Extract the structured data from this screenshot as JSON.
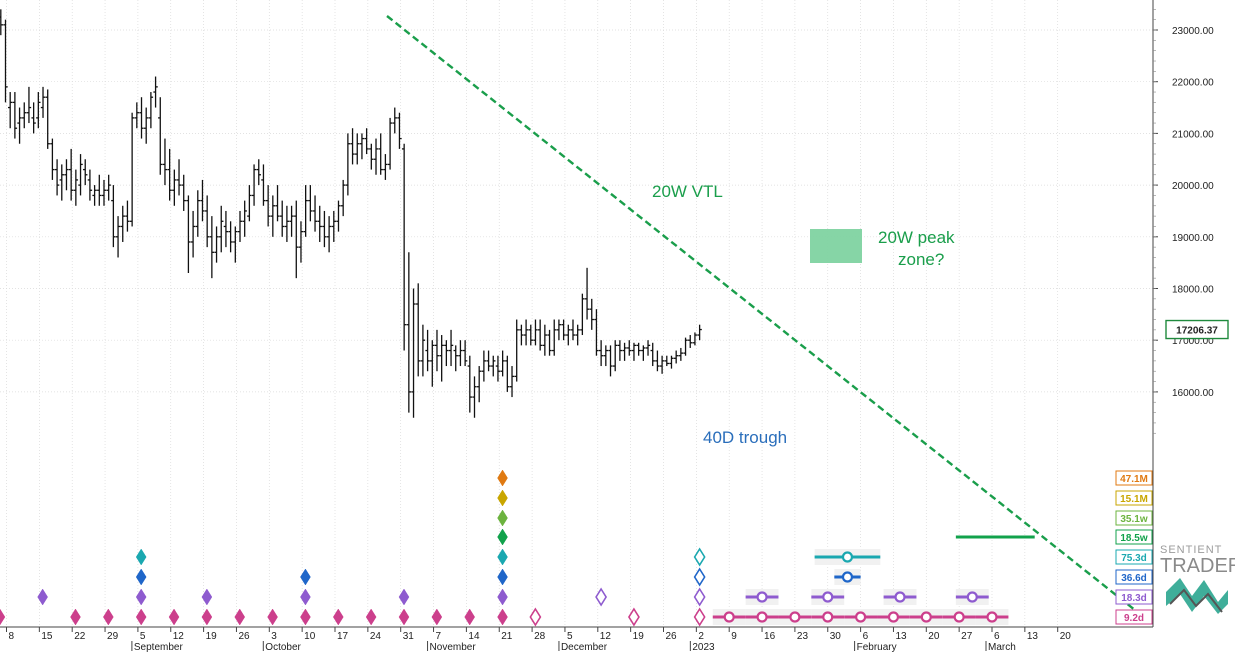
{
  "chart_data": {
    "type": "ohlc-bar",
    "price_axis": {
      "range": [
        15200,
        23400
      ],
      "ticks": [
        "23000.00",
        "22000.00",
        "21000.00",
        "20000.00",
        "19000.00",
        "18000.00",
        "17000.00",
        "16000.00"
      ],
      "tick_values": [
        23000,
        22000,
        21000,
        20000,
        19000,
        18000,
        17000,
        16000
      ],
      "last_price_label": "17206.37",
      "last_price": 17206.37
    },
    "time_axis": {
      "day_labels": [
        "8",
        "15",
        "22",
        "29",
        "5",
        "12",
        "19",
        "26",
        "3",
        "10",
        "17",
        "24",
        "31",
        "7",
        "14",
        "21",
        "28",
        "5",
        "12",
        "19",
        "26",
        "2",
        "9",
        "16",
        "23",
        "30",
        "6",
        "13",
        "20",
        "27",
        "6",
        "13",
        "20"
      ],
      "month_labels": [
        {
          "label": "September",
          "tick": 4
        },
        {
          "label": "October",
          "tick": 8
        },
        {
          "label": "November",
          "tick": 13
        },
        {
          "label": "December",
          "tick": 17
        },
        {
          "label": "2023",
          "tick": 21
        },
        {
          "label": "February",
          "tick": 26
        },
        {
          "label": "March",
          "tick": 30
        }
      ]
    },
    "price_bars": [
      [
        -7,
        23200,
        23400,
        22800,
        23100
      ],
      [
        -6,
        23100,
        23300,
        22900,
        23000
      ],
      [
        -5,
        22950,
        23150,
        22700,
        22800
      ],
      [
        -2,
        23300,
        23400,
        23150,
        23250
      ],
      [
        -1,
        23250,
        23400,
        22900,
        23100
      ],
      [
        0,
        23100,
        23200,
        21600,
        21900
      ],
      [
        1,
        21500,
        21800,
        21100,
        21600
      ],
      [
        2,
        21600,
        21800,
        20900,
        21100
      ],
      [
        3,
        21200,
        21500,
        20800,
        21300
      ],
      [
        4,
        21300,
        21600,
        21100,
        21400
      ],
      [
        5,
        21400,
        21900,
        21200,
        21500
      ],
      [
        6,
        21300,
        21600,
        21000,
        21200
      ],
      [
        7,
        21300,
        21800,
        21100,
        21600
      ],
      [
        8,
        21500,
        21900,
        21300,
        21700
      ],
      [
        9,
        21700,
        21850,
        20700,
        20800
      ],
      [
        10,
        20800,
        20900,
        20100,
        20300
      ],
      [
        11,
        20300,
        20500,
        19800,
        20000
      ],
      [
        12,
        20100,
        20400,
        19700,
        20200
      ],
      [
        13,
        20200,
        20500,
        19900,
        20300
      ],
      [
        14,
        20300,
        20700,
        19700,
        19900
      ],
      [
        15,
        19900,
        20300,
        19600,
        20100
      ],
      [
        16,
        20000,
        20600,
        19800,
        20400
      ],
      [
        17,
        20300,
        20500,
        20000,
        20200
      ],
      [
        18,
        20100,
        20300,
        19700,
        19900
      ],
      [
        19,
        19800,
        20000,
        19600,
        19900
      ],
      [
        20,
        19900,
        20200,
        19600,
        19800
      ],
      [
        21,
        19800,
        20100,
        19600,
        19900
      ],
      [
        22,
        19900,
        20200,
        19700,
        20000
      ],
      [
        23,
        19700,
        20000,
        18800,
        19000
      ],
      [
        24,
        19000,
        19400,
        18600,
        19200
      ],
      [
        25,
        19200,
        19600,
        18900,
        19400
      ],
      [
        26,
        19400,
        19700,
        19100,
        19300
      ],
      [
        27,
        19300,
        21400,
        19200,
        21300
      ],
      [
        28,
        21300,
        21600,
        21100,
        21400
      ],
      [
        29,
        21400,
        21700,
        20900,
        21100
      ],
      [
        30,
        21100,
        21500,
        20800,
        21300
      ],
      [
        31,
        21300,
        21800,
        21100,
        21700
      ],
      [
        32,
        21800,
        22100,
        21500,
        21900
      ],
      [
        33,
        21300,
        21700,
        20200,
        20400
      ],
      [
        34,
        20400,
        20900,
        20000,
        20300
      ],
      [
        35,
        20300,
        20700,
        19700,
        19900
      ],
      [
        36,
        19900,
        20300,
        19600,
        20100
      ],
      [
        37,
        20100,
        20500,
        19800,
        20000
      ],
      [
        38,
        20000,
        20200,
        19500,
        19700
      ],
      [
        39,
        19700,
        19800,
        18300,
        18900
      ],
      [
        40,
        18900,
        19500,
        18600,
        19200
      ],
      [
        41,
        19200,
        19900,
        19000,
        19700
      ],
      [
        42,
        19700,
        20100,
        19300,
        19500
      ],
      [
        43,
        19500,
        19800,
        18800,
        19000
      ],
      [
        44,
        19000,
        19400,
        18200,
        18700
      ],
      [
        45,
        18700,
        19200,
        18500,
        19000
      ],
      [
        46,
        19000,
        19600,
        18700,
        19300
      ],
      [
        47,
        19200,
        19500,
        18800,
        19100
      ],
      [
        48,
        19100,
        19300,
        18700,
        18900
      ],
      [
        49,
        18900,
        19200,
        18500,
        19100
      ],
      [
        50,
        19100,
        19500,
        18900,
        19300
      ],
      [
        51,
        19300,
        19700,
        19000,
        19500
      ],
      [
        52,
        19400,
        20000,
        19300,
        19800
      ],
      [
        53,
        19800,
        20400,
        19600,
        20300
      ],
      [
        54,
        20300,
        20500,
        20000,
        20200
      ],
      [
        55,
        20100,
        20400,
        19600,
        19700
      ],
      [
        56,
        19700,
        20000,
        19200,
        19400
      ],
      [
        57,
        19400,
        19800,
        19000,
        19600
      ],
      [
        58,
        19600,
        20000,
        19300,
        19400
      ],
      [
        59,
        19400,
        19700,
        19000,
        19200
      ],
      [
        60,
        19200,
        19600,
        18900,
        19300
      ],
      [
        61,
        19300,
        19600,
        19000,
        19400
      ],
      [
        62,
        19400,
        19700,
        18200,
        18800
      ],
      [
        63,
        18800,
        19300,
        18500,
        19100
      ],
      [
        64,
        19100,
        20000,
        19000,
        19700
      ],
      [
        65,
        19700,
        20000,
        19300,
        19500
      ],
      [
        66,
        19500,
        19800,
        19100,
        19300
      ],
      [
        67,
        19300,
        19600,
        18900,
        19200
      ],
      [
        68,
        19200,
        19500,
        18800,
        19000
      ],
      [
        69,
        19000,
        19400,
        18700,
        19200
      ],
      [
        70,
        19200,
        19500,
        18900,
        19300
      ],
      [
        71,
        19300,
        19700,
        19100,
        19600
      ],
      [
        72,
        19600,
        20100,
        19400,
        20000
      ],
      [
        73,
        20000,
        21000,
        19800,
        20800
      ],
      [
        74,
        20800,
        21100,
        20400,
        20600
      ],
      [
        75,
        20600,
        21000,
        20400,
        20800
      ],
      [
        76,
        20800,
        21000,
        20500,
        20900
      ],
      [
        77,
        20900,
        21100,
        20600,
        20700
      ],
      [
        78,
        20700,
        20800,
        20300,
        20500
      ],
      [
        79,
        20500,
        20900,
        20200,
        20700
      ],
      [
        80,
        20700,
        21000,
        20200,
        20300
      ],
      [
        81,
        20300,
        20600,
        20100,
        20400
      ],
      [
        82,
        20400,
        21300,
        20300,
        21200
      ],
      [
        83,
        21200,
        21500,
        21000,
        21300
      ],
      [
        84,
        21300,
        21400,
        20700,
        20900
      ],
      [
        85,
        20700,
        20800,
        16800,
        17300
      ],
      [
        86,
        17300,
        18700,
        15600,
        16000
      ],
      [
        87,
        16000,
        18000,
        15500,
        17700
      ],
      [
        88,
        17700,
        18100,
        16300,
        16600
      ],
      [
        89,
        16600,
        17300,
        16300,
        17000
      ],
      [
        90,
        16800,
        17200,
        16400,
        16600
      ],
      [
        91,
        16600,
        17000,
        16100,
        16900
      ],
      [
        92,
        16900,
        17200,
        16400,
        16700
      ],
      [
        93,
        16700,
        17100,
        16200,
        16900
      ],
      [
        94,
        16900,
        17000,
        16500,
        16800
      ],
      [
        95,
        16800,
        17200,
        16500,
        16900
      ],
      [
        96,
        16800,
        16900,
        16400,
        16700
      ],
      [
        97,
        16700,
        17000,
        16500,
        16800
      ],
      [
        98,
        16800,
        17000,
        16500,
        16600
      ],
      [
        99,
        16500,
        16700,
        15600,
        15900
      ],
      [
        100,
        15900,
        16300,
        15500,
        16100
      ],
      [
        101,
        16100,
        16500,
        15800,
        16400
      ],
      [
        102,
        16400,
        16800,
        16200,
        16600
      ],
      [
        103,
        16600,
        16800,
        16400,
        16500
      ],
      [
        104,
        16500,
        16700,
        16300,
        16600
      ],
      [
        105,
        16500,
        16700,
        16200,
        16400
      ],
      [
        106,
        16400,
        16800,
        16300,
        16600
      ],
      [
        107,
        16600,
        16700,
        16000,
        16100
      ],
      [
        108,
        16100,
        16500,
        15900,
        16300
      ],
      [
        109,
        16300,
        17400,
        16200,
        17200
      ],
      [
        110,
        17200,
        17300,
        16900,
        17100
      ],
      [
        111,
        17100,
        17400,
        16900,
        17200
      ],
      [
        112,
        17200,
        17300,
        16900,
        17000
      ],
      [
        113,
        17000,
        17400,
        16900,
        17200
      ],
      [
        114,
        17200,
        17400,
        16800,
        16900
      ],
      [
        115,
        16900,
        17300,
        16700,
        17100
      ],
      [
        116,
        17100,
        17200,
        16700,
        16800
      ],
      [
        117,
        16800,
        17400,
        16700,
        17200
      ],
      [
        118,
        17200,
        17400,
        17000,
        17300
      ],
      [
        119,
        17300,
        17400,
        17000,
        17100
      ],
      [
        120,
        17100,
        17300,
        16900,
        17200
      ],
      [
        121,
        17200,
        17400,
        17000,
        17100
      ],
      [
        122,
        17100,
        17300,
        16900,
        17200
      ],
      [
        123,
        17200,
        17900,
        17100,
        17800
      ],
      [
        124,
        17800,
        18400,
        17400,
        17600
      ],
      [
        125,
        17600,
        17800,
        17200,
        17400
      ],
      [
        126,
        17400,
        17600,
        16700,
        16800
      ],
      [
        127,
        16800,
        17000,
        16500,
        16700
      ],
      [
        128,
        16700,
        16900,
        16500,
        16800
      ],
      [
        129,
        16800,
        16900,
        16300,
        16500
      ],
      [
        130,
        16500,
        17000,
        16400,
        16900
      ],
      [
        131,
        16900,
        17000,
        16600,
        16800
      ],
      [
        132,
        16800,
        16950,
        16600,
        16850
      ],
      [
        133,
        16850,
        17000,
        16700,
        16800
      ],
      [
        134,
        16800,
        16950,
        16600,
        16900
      ],
      [
        135,
        16900,
        16950,
        16700,
        16800
      ],
      [
        136,
        16800,
        16900,
        16600,
        16850
      ],
      [
        137,
        16850,
        17000,
        16700,
        16900
      ],
      [
        138,
        16800,
        16950,
        16500,
        16600
      ],
      [
        139,
        16600,
        16800,
        16400,
        16500
      ],
      [
        140,
        16500,
        16700,
        16350,
        16600
      ],
      [
        141,
        16600,
        16700,
        16500,
        16550
      ],
      [
        142,
        16550,
        16700,
        16450,
        16650
      ],
      [
        143,
        16650,
        16800,
        16550,
        16700
      ],
      [
        144,
        16700,
        16850,
        16600,
        16750
      ],
      [
        145,
        16750,
        17050,
        16700,
        17000
      ],
      [
        146,
        17000,
        17100,
        16850,
        16950
      ],
      [
        147,
        16950,
        17150,
        16900,
        17100
      ],
      [
        148,
        17100,
        17300,
        17000,
        17206
      ]
    ],
    "trend_line": {
      "label": "20W VTL",
      "from": [
        1,
        23300
      ],
      "to": [
        31,
        14300
      ],
      "color": "#1a9e4b"
    },
    "peak_zone": {
      "label_line1": "20W peak",
      "label_line2": "zone?",
      "x": [
        20.9,
        22.5
      ],
      "y": [
        18500,
        19100
      ],
      "color": "#7fd3a1"
    },
    "trough_label": {
      "text": "40D trough",
      "at": [
        22.1,
        15850
      ],
      "color": "#2a6ebb"
    },
    "cycles": [
      {
        "label": "47.1M",
        "color": "#e07a12"
      },
      {
        "label": "15.1M",
        "color": "#c9a600"
      },
      {
        "label": "35.1w",
        "color": "#6cb33f"
      },
      {
        "label": "18.5w",
        "color": "#11a24b"
      },
      {
        "label": "75.3d",
        "color": "#1aa8b0"
      },
      {
        "label": "36.6d",
        "color": "#1f66c9"
      },
      {
        "label": "18.3d",
        "color": "#8e5bcf"
      },
      {
        "label": "9.2d",
        "color": "#cc3f8c"
      }
    ],
    "cycle_markers_past": [
      {
        "row": 7,
        "ticks": [
          -0.2,
          2.1,
          3.1,
          4.1,
          5.1,
          6.1,
          7.1,
          8.1,
          9.1,
          10.1,
          11.1,
          12.1,
          13.1,
          14.1,
          15.1
        ]
      },
      {
        "row": 6,
        "ticks": [
          1.1,
          4.1,
          6.1,
          9.1,
          12.1,
          15.1
        ]
      },
      {
        "row": 5,
        "ticks": [
          4.1,
          9.1,
          15.1
        ]
      },
      {
        "row": 4,
        "ticks": [
          4.1,
          15.1
        ]
      },
      {
        "row": 3,
        "ticks": [
          15.1
        ]
      },
      {
        "row": 2,
        "ticks": [
          15.1
        ]
      },
      {
        "row": 1,
        "ticks": [
          15.1
        ]
      },
      {
        "row": 0,
        "ticks": [
          15.1
        ]
      }
    ],
    "cycle_markers_projected": [
      {
        "row": 7,
        "ticks": [
          16.1,
          19.1,
          21.1
        ],
        "outline": true
      },
      {
        "row": 6,
        "ticks": [
          18.1,
          21.1
        ],
        "outline": true
      },
      {
        "row": 5,
        "ticks": [
          21.1
        ],
        "outline": true
      },
      {
        "row": 4,
        "ticks": [
          21.1
        ],
        "outline": true
      }
    ],
    "cycle_windows": [
      {
        "row": 7,
        "centers": [
          22.0,
          23.0,
          24.0,
          25.0,
          26.0,
          27.0,
          28.0,
          29.0,
          30.0
        ],
        "half": 0.5
      },
      {
        "row": 6,
        "centers": [
          23.0,
          25.0,
          27.2,
          29.4
        ],
        "half": 0.5
      },
      {
        "row": 5,
        "centers": [
          25.6
        ],
        "half": 0.4
      },
      {
        "row": 4,
        "centers": [
          25.6
        ],
        "half": 1.0
      }
    ],
    "cycle18w_line": {
      "from": 28.9,
      "to": 31.3,
      "color": "#11a24b"
    }
  },
  "logo": {
    "line1": "SENTIENT",
    "line2": "TRADER"
  }
}
